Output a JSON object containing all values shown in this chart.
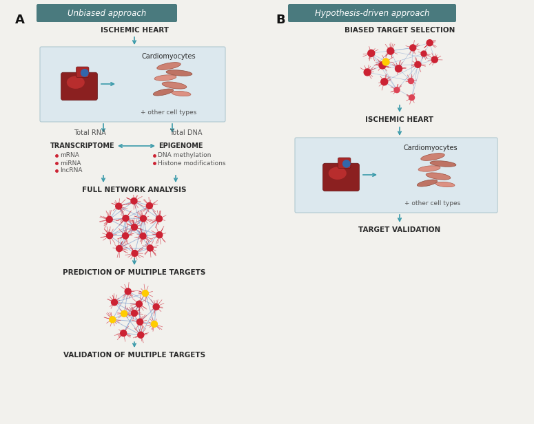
{
  "bg_color": "#f2f1ed",
  "panel_bg": "#dce8ee",
  "header_bg": "#4a7a7e",
  "header_text_color": "#ffffff",
  "arrow_color": "#3a9aaa",
  "label_color": "#2a2a2a",
  "text_gray": "#555555",
  "node_color_red": "#cc2233",
  "node_color_yellow": "#ffcc00",
  "edge_color": "#7799cc",
  "bullet_color": "#cc2233",
  "A_label": "A",
  "B_label": "B",
  "header_A": "Unbiased approach",
  "header_B": "Hypothesis-driven approach",
  "title_A1": "ISCHEMIC HEART",
  "title_B1": "BIASED TARGET SELECTION",
  "title_B2": "ISCHEMIC HEART",
  "label_cardiomyocytes_A": "Cardiomyocytes",
  "label_other_A": "+ other cell types",
  "label_totalRNA": "Total RNA",
  "label_totalDNA": "Total DNA",
  "label_transcriptome": "TRANSCRIPTOME",
  "label_epigenome": "EPIGENOME",
  "bullet_transcriptome": [
    "mRNA",
    "miRNA",
    "lncRNA"
  ],
  "bullet_epigenome": [
    "DNA methylation",
    "Histone modifications"
  ],
  "label_network": "FULL NETWORK ANALYSIS",
  "label_prediction": "PREDICTION OF MULTIPLE TARGETS",
  "label_validation_A": "VALIDATION OF MULTIPLE TARGETS",
  "label_cardiomyocytes_B": "Cardiomyocytes",
  "label_other_B": "+ other cell types",
  "label_target_validation": "TARGET VALIDATION",
  "figsize": [
    7.75,
    6.16
  ],
  "dpi": 100
}
